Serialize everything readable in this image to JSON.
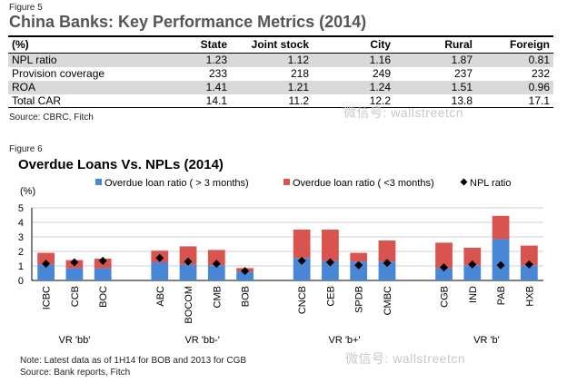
{
  "figure5": {
    "label": "Figure 5",
    "title": "China Banks: Key Performance Metrics (2014)",
    "columns": [
      "(%)",
      "State",
      "Joint stock",
      "City",
      "Rural",
      "Foreign"
    ],
    "rows": [
      {
        "metric": "NPL ratio",
        "values": [
          "1.23",
          "1.12",
          "1.16",
          "1.87",
          "0.81"
        ]
      },
      {
        "metric": "Provision coverage",
        "values": [
          "233",
          "218",
          "249",
          "237",
          "232"
        ]
      },
      {
        "metric": "ROA",
        "values": [
          "1.41",
          "1.21",
          "1.24",
          "1.51",
          "0.96"
        ]
      },
      {
        "metric": "Total CAR",
        "values": [
          "14.1",
          "11.2",
          "12.2",
          "13.8",
          "17.1"
        ]
      }
    ],
    "source": "Source: CBRC, Fitch"
  },
  "figure6": {
    "label": "Figure 6",
    "title": "Overdue Loans Vs. NPLs (2014)",
    "note": "Note:  Latest data as of 1H14 for BOB and 2013 for CGB",
    "source": "Source: Bank reports, Fitch"
  },
  "watermark": "微信号: wallstreetcn",
  "colors": {
    "blue": "#4a86d6",
    "red": "#d9534f",
    "marker": "#000000"
  },
  "chart_data": {
    "type": "bar",
    "stacked": true,
    "title": "Overdue Loans Vs. NPLs (2014)",
    "ylabel": "(%)",
    "ylim": [
      0,
      5
    ],
    "yticks": [
      "0",
      "1",
      "2",
      "3",
      "4",
      "5"
    ],
    "categories": [
      "ICBC",
      "CCB",
      "BOC",
      "ABC",
      "BOCOM",
      "CMB",
      "BOB",
      "CNCB",
      "CEB",
      "SPDB",
      "CMBC",
      "CGB",
      "IND",
      "PAB",
      "HXB"
    ],
    "groups": [
      {
        "label": "VR 'bb'",
        "start": 0,
        "count": 3
      },
      {
        "label": "VR 'bb-'",
        "start": 3,
        "count": 4
      },
      {
        "label": "VR 'b+'",
        "start": 7,
        "count": 4
      },
      {
        "label": "VR 'b'",
        "start": 11,
        "count": 4
      }
    ],
    "series": [
      {
        "name": "Overdue loan ratio ( > 3 months)",
        "kind": "bar",
        "values": [
          1.1,
          0.85,
          0.85,
          1.25,
          1.1,
          1.05,
          0.6,
          1.55,
          1.35,
          1.3,
          1.3,
          0.85,
          1.05,
          2.85,
          1.05
        ]
      },
      {
        "name": "Overdue loan ratio ( <3 months)",
        "kind": "bar",
        "values": [
          0.8,
          0.55,
          0.65,
          0.8,
          1.25,
          1.05,
          0.25,
          1.95,
          2.15,
          0.6,
          1.45,
          1.75,
          1.2,
          1.6,
          1.35
        ]
      },
      {
        "name": "NPL ratio",
        "kind": "marker",
        "values": [
          1.15,
          1.25,
          1.35,
          1.55,
          1.3,
          1.15,
          0.65,
          1.35,
          1.25,
          1.05,
          1.2,
          0.9,
          1.1,
          1.05,
          1.1
        ]
      }
    ]
  }
}
